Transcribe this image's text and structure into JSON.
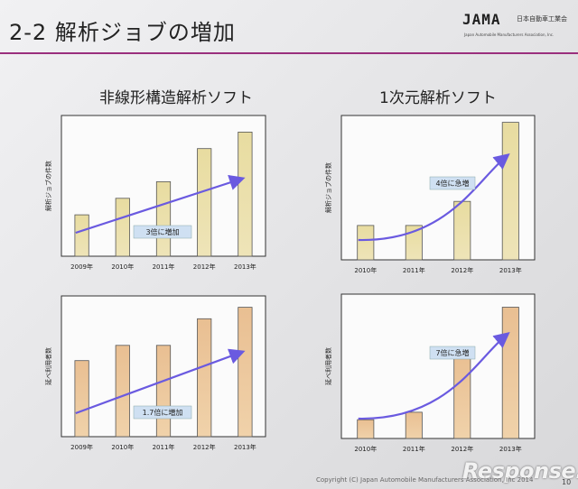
{
  "slide": {
    "title": "2-2 解析ジョブの増加",
    "logo_mark": "JAMA",
    "logo_text": "日本自動車工業会",
    "logo_sub": "Japan Automobile Manufacturers Association, Inc.",
    "footer": "Copyright (C) Japan Automobile Manufacturers Association, Inc 2014",
    "page": "10",
    "watermark": "Response."
  },
  "sections": [
    {
      "title": "非線形構造解析ソフト"
    },
    {
      "title": "1次元解析ソフト"
    }
  ],
  "colors": {
    "bar_top": "#e8dca0",
    "bar_bottom": "#e9bf92",
    "arrow": "#6a5ae0",
    "accent_rule": "#9a2f7d"
  },
  "chart_data": [
    {
      "type": "bar",
      "categories": [
        "2009年",
        "2010年",
        "2011年",
        "2012年",
        "2013年"
      ],
      "values": [
        1.0,
        1.4,
        1.8,
        2.6,
        3.0
      ],
      "ylabel": "解析ジョブの件数",
      "annotation": "3倍に増加",
      "ylim": [
        0,
        3.4
      ]
    },
    {
      "type": "bar",
      "categories": [
        "2010年",
        "2011年",
        "2012年",
        "2013年"
      ],
      "values": [
        1.0,
        1.0,
        1.7,
        4.0
      ],
      "ylabel": "解析ジョブの件数",
      "annotation": "4倍に急増",
      "ylim": [
        0,
        4.2
      ]
    },
    {
      "type": "bar",
      "categories": [
        "2009年",
        "2010年",
        "2011年",
        "2012年",
        "2013年"
      ],
      "values": [
        1.0,
        1.2,
        1.2,
        1.55,
        1.7
      ],
      "ylabel": "延べ利用者数",
      "annotation": "1.7倍に増加",
      "ylim": [
        0,
        1.85
      ]
    },
    {
      "type": "bar",
      "categories": [
        "2010年",
        "2011年",
        "2012年",
        "2013年"
      ],
      "values": [
        1.0,
        1.4,
        4.5,
        7.0
      ],
      "ylabel": "延べ利用者数",
      "annotation": "7倍に急増",
      "ylim": [
        0,
        7.7
      ]
    }
  ]
}
